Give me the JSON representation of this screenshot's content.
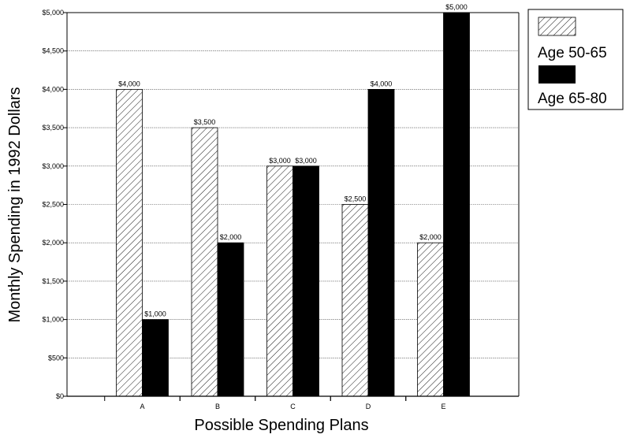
{
  "chart_data": {
    "type": "bar",
    "title": "",
    "xlabel": "Possible Spending Plans",
    "ylabel": "Monthly Spending in 1992 Dollars",
    "categories": [
      "A",
      "B",
      "C",
      "D",
      "E"
    ],
    "series": [
      {
        "name": "Age 50-65",
        "values": [
          4000,
          3500,
          3000,
          2500,
          2000
        ],
        "labels": [
          "$4,000",
          "$3,500",
          "$3,000",
          "$2,500",
          "$2,000"
        ],
        "fill": "hatched"
      },
      {
        "name": "Age 65-80",
        "values": [
          1000,
          2000,
          3000,
          4000,
          5000
        ],
        "labels": [
          "$1,000",
          "$2,000",
          "$3,000",
          "$4,000",
          "$5,000"
        ],
        "fill": "#000000"
      }
    ],
    "ylim": [
      0,
      5000
    ],
    "yticks": [
      0,
      500,
      1000,
      1500,
      2000,
      2500,
      3000,
      3500,
      4000,
      4500,
      5000
    ],
    "ytick_labels": [
      "$0",
      "$500",
      "$1,000",
      "$1,500",
      "$2,000",
      "$2,500",
      "$3,000",
      "$3,500",
      "$4,000",
      "$4,500",
      "$5,000"
    ],
    "grid": true,
    "legend_position": "top-right"
  }
}
